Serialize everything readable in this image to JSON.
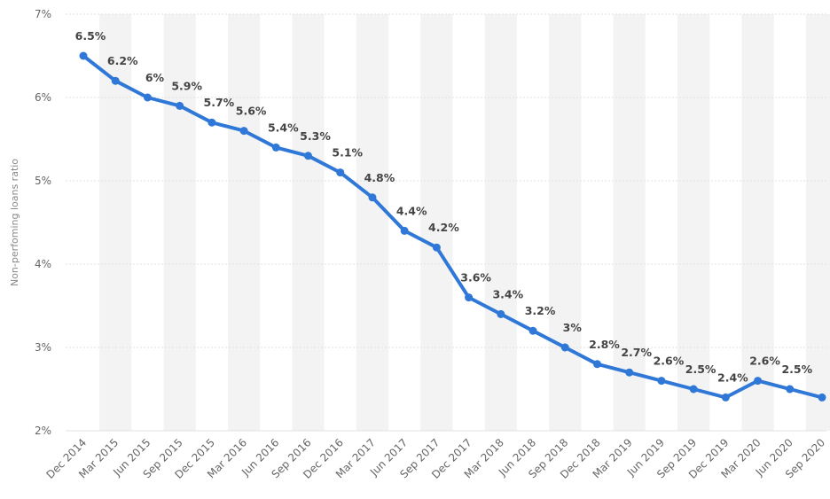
{
  "chart_data": {
    "type": "line",
    "title": "",
    "xlabel": "",
    "ylabel": "Non-perfoming loans ratio",
    "ylim": [
      2,
      7
    ],
    "y_ticks": [
      "2%",
      "3%",
      "4%",
      "5%",
      "6%",
      "7%"
    ],
    "grid": true,
    "legend": "none",
    "line_color": "#2f78d8",
    "categories": [
      "Dec 2014",
      "Mar 2015",
      "Jun 2015",
      "Sep 2015",
      "Dec 2015",
      "Mar 2016",
      "Jun 2016",
      "Sep 2016",
      "Dec 2016",
      "Mar 2017",
      "Jun 2017",
      "Sep 2017",
      "Dec 2017",
      "Mar 2018",
      "Jun 2018",
      "Sep 2018",
      "Dec 2018",
      "Mar 2019",
      "Jun 2019",
      "Sep 2019",
      "Dec 2019",
      "Mar 2020",
      "Jun 2020",
      "Sep 2020"
    ],
    "series": [
      {
        "values": [
          6.5,
          6.2,
          6.0,
          5.9,
          5.7,
          5.6,
          5.4,
          5.3,
          5.1,
          4.8,
          4.4,
          4.2,
          3.6,
          3.4,
          3.2,
          3.0,
          2.8,
          2.7,
          2.6,
          2.5,
          2.4,
          2.6,
          2.5,
          2.4
        ],
        "labels": [
          "6.5%",
          "6.2%",
          "6%",
          "5.9%",
          "5.7%",
          "5.6%",
          "5.4%",
          "5.3%",
          "5.1%",
          "4.8%",
          "4.4%",
          "4.2%",
          "3.6%",
          "3.4%",
          "3.2%",
          "3%",
          "2.8%",
          "2.7%",
          "2.6%",
          "2.5%",
          "2.4%",
          "2.6%",
          "2.5%",
          ""
        ]
      }
    ]
  }
}
